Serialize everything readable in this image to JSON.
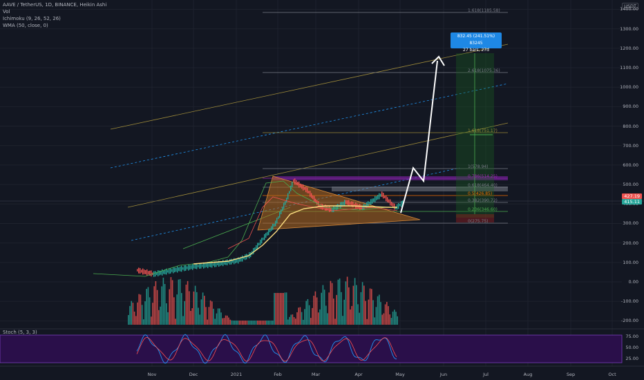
{
  "header": {
    "title": "AAVE / TetherUS, 1D, BINANCE, Heikin Ashi",
    "vol": "Vol",
    "ichimoku": "Ichimoku (9, 26, 52, 26)",
    "wma": "WMA (50, close, 0)",
    "stoch": "Stoch (5, 3, 3)"
  },
  "currency": "USDT",
  "price_tag": "427.19",
  "price_tag2": "415.11",
  "target_bubble": {
    "line1": "832.45 (241.51%) 83245",
    "line2": "27 bars, 27d"
  },
  "fib_labels": [
    "1.618(1185.58)",
    "2.618(1075.36)",
    "1.618(751.17)",
    "1(578.94)",
    "0.786(514.25)",
    "0.618(464.40)",
    "0.5(426.85)",
    "0.382(390.72)",
    "0.236(346.60)",
    "0(275.75)"
  ],
  "colors": {
    "bg": "#131722",
    "up": "#26a69a",
    "down": "#ef5350",
    "accent": "#2196f3"
  },
  "chart_data": {
    "type": "candlestick",
    "title": "AAVE / TetherUS, 1D, BINANCE, Heikin Ashi",
    "y_ticks": [
      "1400.00",
      "1300.00",
      "1200.00",
      "1100.00",
      "1000.00",
      "900.00",
      "800.00",
      "700.00",
      "600.00",
      "500.00",
      "400.00",
      "300.00",
      "200.00",
      "100.00",
      "0.00",
      "-100.00",
      "-200.00"
    ],
    "x_ticks": [
      "Nov",
      "Dec",
      "2021",
      "Feb",
      "Mar",
      "Apr",
      "May",
      "Jun",
      "Jul",
      "Aug",
      "Sep",
      "Oct"
    ],
    "stoch_ticks": [
      "75.00",
      "50.00",
      "25.00"
    ],
    "ylim": [
      -200,
      1400
    ],
    "price_series": [
      {
        "x": "2020-10-20",
        "y": 60
      },
      {
        "x": "2020-11-01",
        "y": 40
      },
      {
        "x": "2020-11-15",
        "y": 60
      },
      {
        "x": "2020-12-01",
        "y": 80
      },
      {
        "x": "2020-12-15",
        "y": 90
      },
      {
        "x": "2021-01-01",
        "y": 110
      },
      {
        "x": "2021-01-10",
        "y": 140
      },
      {
        "x": "2021-01-20",
        "y": 230
      },
      {
        "x": "2021-01-28",
        "y": 300
      },
      {
        "x": "2021-02-05",
        "y": 420
      },
      {
        "x": "2021-02-10",
        "y": 520
      },
      {
        "x": "2021-02-20",
        "y": 470
      },
      {
        "x": "2021-03-01",
        "y": 390
      },
      {
        "x": "2021-03-10",
        "y": 370
      },
      {
        "x": "2021-03-20",
        "y": 410
      },
      {
        "x": "2021-04-01",
        "y": 380
      },
      {
        "x": "2021-04-15",
        "y": 450
      },
      {
        "x": "2021-04-25",
        "y": 380
      },
      {
        "x": "2021-05-01",
        "y": 410
      }
    ],
    "projection_target": 1185,
    "volume_label_max": "0.00"
  }
}
